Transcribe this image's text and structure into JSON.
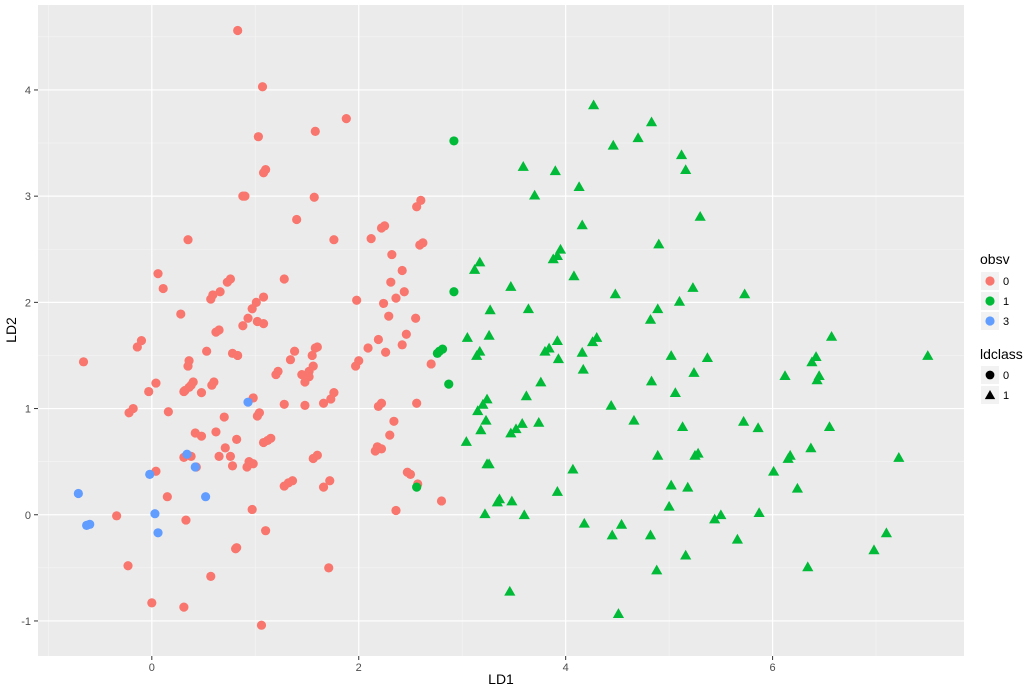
{
  "chart_data": {
    "type": "scatter",
    "xlabel": "LD1",
    "ylabel": "LD2",
    "xlim": [
      -1.1,
      7.85
    ],
    "ylim": [
      -1.33,
      4.8
    ],
    "x_ticks": [
      "0",
      "2",
      "4",
      "6"
    ],
    "x_tick_values": [
      0,
      2,
      4,
      6
    ],
    "y_ticks": [
      "-1",
      "0",
      "1",
      "2",
      "3",
      "4"
    ],
    "y_tick_values": [
      -1,
      0,
      1,
      2,
      3,
      4
    ],
    "grid": true,
    "panel_background": "#ebebeb",
    "legend_placement": "right",
    "legends": [
      {
        "title": "obsv",
        "kind": "color",
        "entries": [
          {
            "label": "0",
            "color": "#F8766D"
          },
          {
            "label": "1",
            "color": "#00BA38"
          },
          {
            "label": "3",
            "color": "#619CFF"
          }
        ]
      },
      {
        "title": "ldclass",
        "kind": "shape",
        "entries": [
          {
            "label": "0",
            "shape": "circle"
          },
          {
            "label": "1",
            "shape": "triangle"
          }
        ]
      }
    ],
    "series": [
      {
        "obsv": "0",
        "ldclass": "0",
        "color": "#F8766D",
        "shape": "circle",
        "points": [
          [
            0.83,
            4.56
          ],
          [
            1.07,
            4.03
          ],
          [
            1.03,
            3.56
          ],
          [
            1.58,
            3.61
          ],
          [
            1.88,
            3.73
          ],
          [
            1.1,
            3.25
          ],
          [
            1.08,
            3.22
          ],
          [
            0.88,
            3.0
          ],
          [
            0.9,
            3.0
          ],
          [
            1.57,
            2.99
          ],
          [
            1.4,
            2.78
          ],
          [
            2.6,
            2.96
          ],
          [
            2.56,
            2.9
          ],
          [
            0.35,
            2.59
          ],
          [
            1.76,
            2.59
          ],
          [
            2.12,
            2.6
          ],
          [
            2.22,
            2.7
          ],
          [
            2.25,
            2.72
          ],
          [
            2.59,
            2.54
          ],
          [
            2.62,
            2.56
          ],
          [
            2.32,
            2.45
          ],
          [
            0.06,
            2.27
          ],
          [
            0.11,
            2.13
          ],
          [
            0.76,
            2.22
          ],
          [
            0.73,
            2.19
          ],
          [
            1.28,
            2.22
          ],
          [
            2.42,
            2.3
          ],
          [
            2.31,
            2.19
          ],
          [
            2.36,
            2.04
          ],
          [
            2.44,
            2.1
          ],
          [
            2.24,
            1.99
          ],
          [
            0.57,
            2.03
          ],
          [
            0.59,
            2.07
          ],
          [
            0.66,
            2.1
          ],
          [
            0.97,
            1.94
          ],
          [
            1.01,
            2.0
          ],
          [
            1.08,
            2.05
          ],
          [
            1.98,
            2.02
          ],
          [
            2.29,
            1.87
          ],
          [
            2.55,
            1.85
          ],
          [
            0.28,
            1.89
          ],
          [
            0.88,
            1.78
          ],
          [
            1.02,
            1.82
          ],
          [
            1.08,
            1.8
          ],
          [
            0.62,
            1.72
          ],
          [
            0.65,
            1.74
          ],
          [
            0.93,
            1.85
          ],
          [
            -0.14,
            1.58
          ],
          [
            -0.1,
            1.64
          ],
          [
            0.53,
            1.54
          ],
          [
            0.78,
            1.52
          ],
          [
            1.38,
            1.54
          ],
          [
            1.34,
            1.46
          ],
          [
            1.58,
            1.57
          ],
          [
            1.6,
            1.58
          ],
          [
            1.55,
            1.5
          ],
          [
            1.56,
            1.4
          ],
          [
            2.0,
            1.45
          ],
          [
            1.97,
            1.4
          ],
          [
            2.09,
            1.57
          ],
          [
            2.19,
            1.65
          ],
          [
            2.26,
            1.53
          ],
          [
            2.42,
            1.6
          ],
          [
            2.46,
            1.7
          ],
          [
            -0.66,
            1.44
          ],
          [
            0.35,
            1.4
          ],
          [
            0.36,
            1.45
          ],
          [
            0.83,
            1.5
          ],
          [
            1.22,
            1.35
          ],
          [
            1.2,
            1.32
          ],
          [
            1.45,
            1.32
          ],
          [
            1.52,
            1.35
          ],
          [
            1.52,
            1.3
          ],
          [
            1.48,
            1.25
          ],
          [
            2.7,
            1.42
          ],
          [
            0.58,
            1.22
          ],
          [
            0.6,
            1.25
          ],
          [
            0.4,
            1.25
          ],
          [
            0.38,
            1.22
          ],
          [
            0.36,
            1.2
          ],
          [
            0.32,
            1.17
          ],
          [
            0.31,
            1.16
          ],
          [
            0.04,
            1.24
          ],
          [
            -0.03,
            1.16
          ],
          [
            0.48,
            1.15
          ],
          [
            1.76,
            1.15
          ],
          [
            1.73,
            1.09
          ],
          [
            1.66,
            1.05
          ],
          [
            1.28,
            1.04
          ],
          [
            1.48,
            1.03
          ],
          [
            2.22,
            1.05
          ],
          [
            2.19,
            1.02
          ],
          [
            2.56,
            1.05
          ],
          [
            -0.22,
            0.96
          ],
          [
            -0.18,
            1.0
          ],
          [
            0.16,
            0.97
          ],
          [
            0.7,
            0.92
          ],
          [
            0.98,
            1.1
          ],
          [
            1.04,
            0.96
          ],
          [
            1.02,
            0.93
          ],
          [
            0.42,
            0.77
          ],
          [
            0.48,
            0.74
          ],
          [
            0.62,
            0.78
          ],
          [
            0.82,
            0.71
          ],
          [
            1.08,
            0.68
          ],
          [
            1.12,
            0.7
          ],
          [
            1.15,
            0.72
          ],
          [
            2.34,
            0.88
          ],
          [
            2.3,
            0.75
          ],
          [
            2.18,
            0.64
          ],
          [
            2.16,
            0.6
          ],
          [
            2.22,
            0.62
          ],
          [
            2.19,
            0.63
          ],
          [
            0.31,
            0.54
          ],
          [
            0.38,
            0.55
          ],
          [
            0.65,
            0.55
          ],
          [
            0.71,
            0.63
          ],
          [
            0.76,
            0.55
          ],
          [
            0.94,
            0.5
          ],
          [
            0.98,
            0.48
          ],
          [
            1.56,
            0.53
          ],
          [
            1.6,
            0.56
          ],
          [
            0.04,
            0.41
          ],
          [
            0.43,
            0.45
          ],
          [
            0.78,
            0.46
          ],
          [
            0.92,
            0.45
          ],
          [
            2.47,
            0.4
          ],
          [
            2.5,
            0.38
          ],
          [
            1.32,
            0.3
          ],
          [
            1.36,
            0.32
          ],
          [
            1.28,
            0.27
          ],
          [
            1.66,
            0.26
          ],
          [
            1.72,
            0.32
          ],
          [
            2.57,
            0.29
          ],
          [
            0.15,
            0.17
          ],
          [
            0.97,
            0.05
          ],
          [
            2.8,
            0.13
          ],
          [
            -0.34,
            -0.01
          ],
          [
            0.33,
            -0.05
          ],
          [
            1.1,
            -0.15
          ],
          [
            2.36,
            0.04
          ],
          [
            -0.23,
            -0.48
          ],
          [
            0.57,
            -0.58
          ],
          [
            0.81,
            -0.32
          ],
          [
            0.82,
            -0.31
          ],
          [
            1.71,
            -0.5
          ],
          [
            0.0,
            -0.83
          ],
          [
            0.31,
            -0.87
          ],
          [
            1.06,
            -1.04
          ]
        ]
      },
      {
        "obsv": "1",
        "ldclass": "0",
        "color": "#00BA38",
        "shape": "circle",
        "points": [
          [
            2.92,
            3.52
          ],
          [
            2.92,
            2.1
          ],
          [
            2.76,
            1.52
          ],
          [
            2.78,
            1.54
          ],
          [
            2.81,
            1.56
          ],
          [
            2.87,
            1.23
          ],
          [
            2.56,
            0.26
          ]
        ]
      },
      {
        "obsv": "1",
        "ldclass": "1",
        "color": "#00BA38",
        "shape": "triangle",
        "points": [
          [
            4.27,
            3.85
          ],
          [
            4.83,
            3.69
          ],
          [
            4.7,
            3.54
          ],
          [
            4.46,
            3.47
          ],
          [
            5.12,
            3.38
          ],
          [
            5.16,
            3.24
          ],
          [
            3.59,
            3.27
          ],
          [
            3.9,
            3.23
          ],
          [
            4.13,
            3.08
          ],
          [
            3.7,
            3.0
          ],
          [
            5.3,
            2.8
          ],
          [
            4.16,
            2.72
          ],
          [
            4.9,
            2.54
          ],
          [
            3.95,
            2.49
          ],
          [
            3.92,
            2.43
          ],
          [
            3.88,
            2.4
          ],
          [
            3.17,
            2.37
          ],
          [
            3.12,
            2.3
          ],
          [
            4.08,
            2.24
          ],
          [
            3.47,
            2.14
          ],
          [
            5.23,
            2.13
          ],
          [
            4.48,
            2.07
          ],
          [
            5.73,
            2.07
          ],
          [
            5.1,
            2.0
          ],
          [
            3.27,
            1.92
          ],
          [
            3.64,
            1.93
          ],
          [
            4.89,
            1.93
          ],
          [
            4.82,
            1.83
          ],
          [
            3.05,
            1.66
          ],
          [
            3.26,
            1.68
          ],
          [
            4.3,
            1.66
          ],
          [
            4.26,
            1.62
          ],
          [
            3.92,
            1.63
          ],
          [
            6.57,
            1.67
          ],
          [
            3.17,
            1.53
          ],
          [
            3.14,
            1.49
          ],
          [
            3.8,
            1.53
          ],
          [
            3.84,
            1.56
          ],
          [
            3.93,
            1.46
          ],
          [
            4.16,
            1.52
          ],
          [
            5.02,
            1.49
          ],
          [
            5.37,
            1.47
          ],
          [
            6.42,
            1.48
          ],
          [
            6.38,
            1.43
          ],
          [
            7.5,
            1.49
          ],
          [
            4.17,
            1.36
          ],
          [
            5.24,
            1.33
          ],
          [
            6.12,
            1.3
          ],
          [
            6.45,
            1.3
          ],
          [
            6.43,
            1.26
          ],
          [
            3.76,
            1.24
          ],
          [
            4.83,
            1.25
          ],
          [
            3.62,
            1.11
          ],
          [
            5.06,
            1.14
          ],
          [
            3.24,
            1.08
          ],
          [
            3.2,
            1.03
          ],
          [
            3.15,
            0.97
          ],
          [
            3.23,
            0.88
          ],
          [
            4.44,
            1.02
          ],
          [
            4.66,
            0.88
          ],
          [
            5.13,
            0.82
          ],
          [
            5.72,
            0.87
          ],
          [
            5.86,
            0.81
          ],
          [
            6.55,
            0.82
          ],
          [
            3.18,
            0.79
          ],
          [
            3.52,
            0.8
          ],
          [
            3.58,
            0.85
          ],
          [
            3.47,
            0.76
          ],
          [
            3.04,
            0.68
          ],
          [
            3.74,
            0.86
          ],
          [
            4.89,
            0.55
          ],
          [
            5.25,
            0.55
          ],
          [
            5.28,
            0.57
          ],
          [
            6.17,
            0.55
          ],
          [
            6.15,
            0.52
          ],
          [
            6.37,
            0.62
          ],
          [
            7.22,
            0.53
          ],
          [
            3.24,
            0.47
          ],
          [
            3.26,
            0.47
          ],
          [
            4.07,
            0.42
          ],
          [
            6.01,
            0.4
          ],
          [
            5.02,
            0.27
          ],
          [
            5.18,
            0.25
          ],
          [
            6.24,
            0.24
          ],
          [
            3.92,
            0.21
          ],
          [
            3.36,
            0.14
          ],
          [
            3.34,
            0.11
          ],
          [
            3.48,
            0.12
          ],
          [
            5.0,
            0.07
          ],
          [
            3.22,
            0.0
          ],
          [
            3.6,
            -0.01
          ],
          [
            5.44,
            -0.05
          ],
          [
            5.5,
            -0.01
          ],
          [
            5.87,
            0.01
          ],
          [
            4.18,
            -0.09
          ],
          [
            4.54,
            -0.1
          ],
          [
            4.45,
            -0.2
          ],
          [
            4.82,
            -0.2
          ],
          [
            5.66,
            -0.24
          ],
          [
            7.1,
            -0.18
          ],
          [
            6.98,
            -0.34
          ],
          [
            5.16,
            -0.39
          ],
          [
            4.88,
            -0.53
          ],
          [
            6.34,
            -0.5
          ],
          [
            3.46,
            -0.73
          ],
          [
            4.51,
            -0.94
          ]
        ]
      },
      {
        "obsv": "3",
        "ldclass": "0",
        "color": "#619CFF",
        "shape": "circle",
        "points": [
          [
            0.93,
            1.06
          ],
          [
            0.34,
            0.57
          ],
          [
            0.42,
            0.45
          ],
          [
            -0.02,
            0.38
          ],
          [
            0.52,
            0.17
          ],
          [
            -0.71,
            0.2
          ],
          [
            0.03,
            0.01
          ],
          [
            -0.6,
            -0.09
          ],
          [
            -0.63,
            -0.1
          ],
          [
            0.06,
            -0.17
          ]
        ]
      }
    ]
  }
}
